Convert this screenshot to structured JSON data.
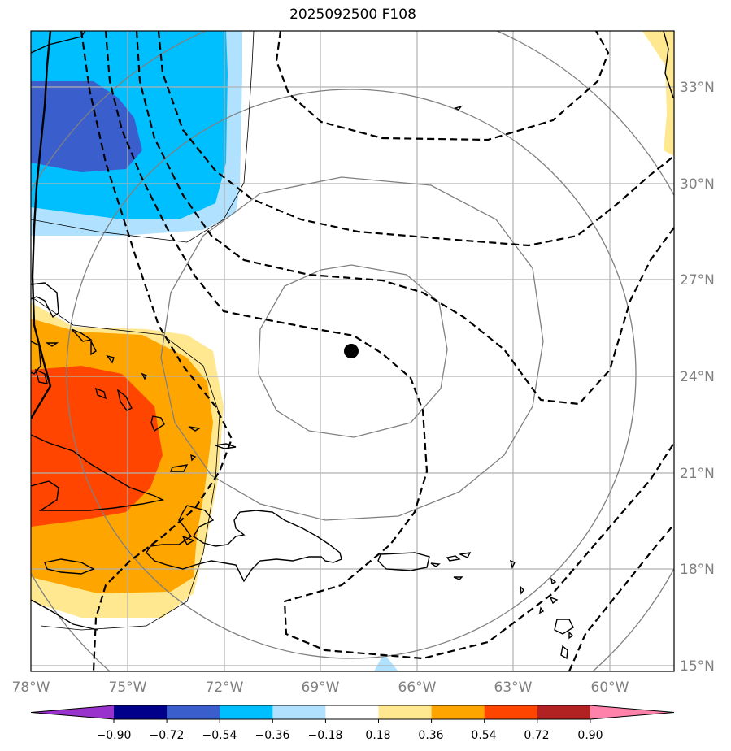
{
  "title": "2025092500 F108",
  "axes": {
    "lon_labels": [
      "78°W",
      "75°W",
      "72°W",
      "69°W",
      "66°W",
      "63°W",
      "60°W"
    ],
    "lat_labels": [
      "33°N",
      "30°N",
      "27°N",
      "24°N",
      "21°N",
      "18°N",
      "15°N"
    ]
  },
  "colorbar": {
    "levels": [
      "−0.90",
      "−0.72",
      "−0.54",
      "−0.36",
      "−0.18",
      "0.18",
      "0.36",
      "0.54",
      "0.72",
      "0.90"
    ],
    "colors": [
      "#9932cc",
      "#00008b",
      "#3a5fcd",
      "#00bfff",
      "#b0e2ff",
      "#ffffff",
      "#ffe88f",
      "#ffa500",
      "#ff4500",
      "#b22222",
      "#ff82ab"
    ]
  },
  "map": {
    "domain_lon": [
      -78,
      -58
    ],
    "domain_lat": [
      14.8,
      34.8
    ],
    "storm_center": {
      "lon": -68.0,
      "lat": 24.8
    }
  },
  "colors": {
    "grid": "#b0b0b0",
    "coast": "#000000",
    "dashed_contour": "#000000",
    "solid_contour": "#808080"
  }
}
